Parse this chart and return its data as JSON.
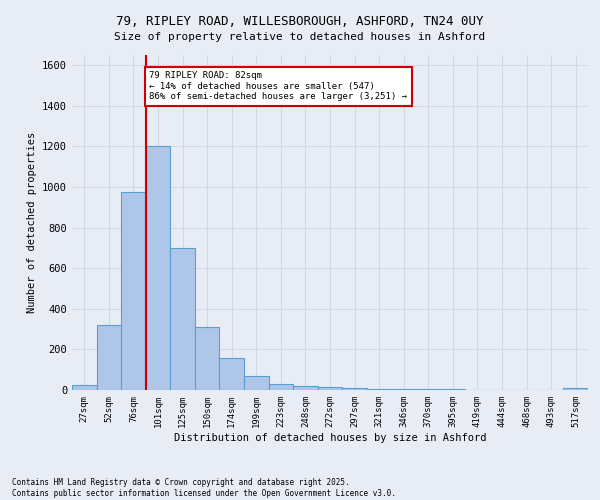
{
  "title_line1": "79, RIPLEY ROAD, WILLESBOROUGH, ASHFORD, TN24 0UY",
  "title_line2": "Size of property relative to detached houses in Ashford",
  "xlabel": "Distribution of detached houses by size in Ashford",
  "ylabel": "Number of detached properties",
  "footnote1": "Contains HM Land Registry data © Crown copyright and database right 2025.",
  "footnote2": "Contains public sector information licensed under the Open Government Licence v3.0.",
  "bin_labels": [
    "27sqm",
    "52sqm",
    "76sqm",
    "101sqm",
    "125sqm",
    "150sqm",
    "174sqm",
    "199sqm",
    "223sqm",
    "248sqm",
    "272sqm",
    "297sqm",
    "321sqm",
    "346sqm",
    "370sqm",
    "395sqm",
    "419sqm",
    "444sqm",
    "468sqm",
    "493sqm",
    "517sqm"
  ],
  "bar_values": [
    25,
    320,
    975,
    1200,
    700,
    310,
    160,
    70,
    30,
    20,
    15,
    10,
    5,
    3,
    3,
    3,
    0,
    0,
    0,
    0,
    10
  ],
  "bar_color": "#aec6e8",
  "bar_edge_color": "#5a9fd4",
  "grid_color": "#d0d8e8",
  "background_color": "#e8edf5",
  "red_line_bin_index": 2,
  "annotation_text_line1": "79 RIPLEY ROAD: 82sqm",
  "annotation_text_line2": "← 14% of detached houses are smaller (547)",
  "annotation_text_line3": "86% of semi-detached houses are larger (3,251) →",
  "annotation_box_color": "#ffffff",
  "annotation_border_color": "#cc0000",
  "ylim": [
    0,
    1650
  ],
  "yticks": [
    0,
    200,
    400,
    600,
    800,
    1000,
    1200,
    1400,
    1600
  ]
}
